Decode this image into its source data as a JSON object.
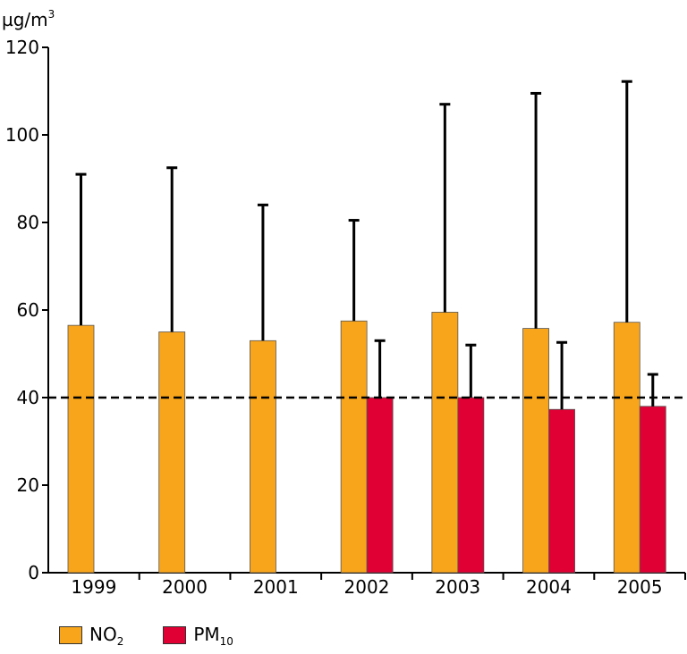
{
  "chart_data": {
    "type": "bar",
    "ylabel": "µg/m",
    "ylabel_superscript": "3",
    "ylim": [
      0,
      120
    ],
    "yticks": [
      "0",
      "20",
      "40",
      "60",
      "80",
      "100",
      "120"
    ],
    "categories": [
      "1999",
      "2000",
      "2001",
      "2002",
      "2003",
      "2004",
      "2005"
    ],
    "series": [
      {
        "name": "NO",
        "name_subscript": "2",
        "color": "#f9a51b",
        "values": [
          56.5,
          55,
          53,
          57.5,
          59.5,
          55.8,
          57.2
        ],
        "error_upper": [
          91,
          92.5,
          84,
          80.5,
          107,
          109.5,
          112.2
        ]
      },
      {
        "name": "PM",
        "name_subscript": "10",
        "color": "#e00034",
        "values": [
          null,
          null,
          null,
          40,
          40,
          37.3,
          38
        ],
        "error_upper": [
          null,
          null,
          null,
          53,
          52,
          52.6,
          45.3
        ]
      }
    ],
    "reference_line": {
      "value": 40,
      "style": "dashed"
    },
    "grid": false,
    "legend_position": "bottom-left"
  }
}
